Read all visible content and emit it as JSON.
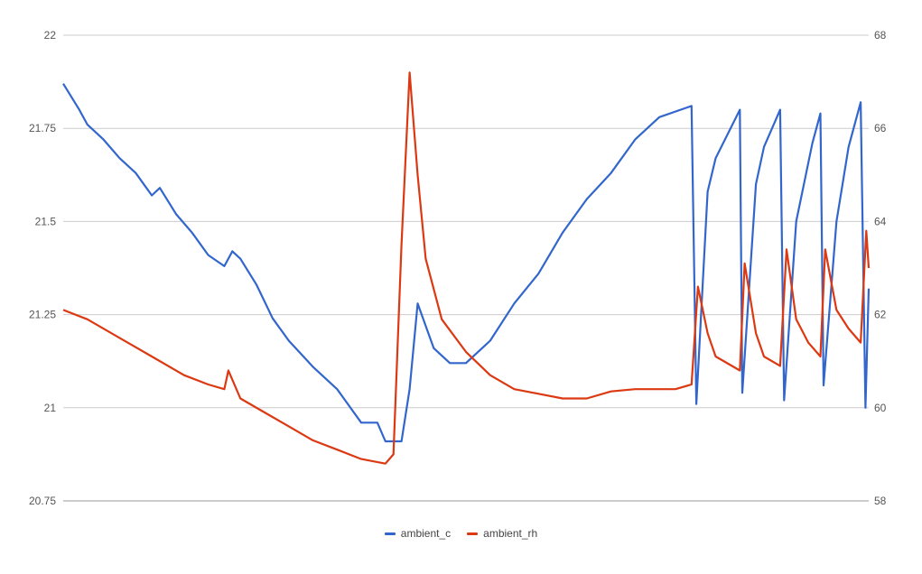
{
  "chart_data": {
    "type": "line",
    "y_left": {
      "ticks": [
        20.75,
        21,
        21.25,
        21.5,
        21.75,
        22
      ],
      "tick_labels": [
        "20.75",
        "21",
        "21.25",
        "21.5",
        "21.75",
        "22"
      ],
      "range": [
        20.75,
        22
      ]
    },
    "y_right": {
      "ticks": [
        58,
        60,
        62,
        64,
        66,
        68
      ],
      "tick_labels": [
        "58",
        "60",
        "62",
        "64",
        "66",
        "68"
      ],
      "range": [
        58,
        68
      ]
    },
    "x_range": [
      0,
      100
    ],
    "grid": true,
    "legend_position": "bottom",
    "series": [
      {
        "name": "ambient_c",
        "axis": "left",
        "color": "#3366cc",
        "points": [
          [
            0,
            21.87
          ],
          [
            2,
            21.8
          ],
          [
            3,
            21.76
          ],
          [
            5,
            21.72
          ],
          [
            7,
            21.67
          ],
          [
            9,
            21.63
          ],
          [
            11,
            21.57
          ],
          [
            12,
            21.59
          ],
          [
            14,
            21.52
          ],
          [
            16,
            21.47
          ],
          [
            18,
            21.41
          ],
          [
            20,
            21.38
          ],
          [
            21,
            21.42
          ],
          [
            22,
            21.4
          ],
          [
            24,
            21.33
          ],
          [
            26,
            21.24
          ],
          [
            28,
            21.18
          ],
          [
            31,
            21.11
          ],
          [
            34,
            21.05
          ],
          [
            37,
            20.96
          ],
          [
            39,
            20.96
          ],
          [
            40,
            20.91
          ],
          [
            42,
            20.91
          ],
          [
            43,
            21.05
          ],
          [
            44,
            21.28
          ],
          [
            46,
            21.16
          ],
          [
            48,
            21.12
          ],
          [
            50,
            21.12
          ],
          [
            53,
            21.18
          ],
          [
            56,
            21.28
          ],
          [
            59,
            21.36
          ],
          [
            62,
            21.47
          ],
          [
            65,
            21.56
          ],
          [
            68,
            21.63
          ],
          [
            71,
            21.72
          ],
          [
            74,
            21.78
          ],
          [
            78,
            21.81
          ],
          [
            78.6,
            21.01
          ],
          [
            80,
            21.58
          ],
          [
            81,
            21.67
          ],
          [
            84,
            21.8
          ],
          [
            84.3,
            21.04
          ],
          [
            86,
            21.6
          ],
          [
            87,
            21.7
          ],
          [
            89,
            21.8
          ],
          [
            89.5,
            21.02
          ],
          [
            91,
            21.5
          ],
          [
            93,
            21.71
          ],
          [
            94,
            21.79
          ],
          [
            94.4,
            21.06
          ],
          [
            96,
            21.5
          ],
          [
            97.5,
            21.7
          ],
          [
            99,
            21.82
          ],
          [
            99.6,
            21.0
          ],
          [
            100,
            21.32
          ]
        ]
      },
      {
        "name": "ambient_rh",
        "axis": "right",
        "color": "#dc3912",
        "points": [
          [
            0,
            62.1
          ],
          [
            3,
            61.9
          ],
          [
            7,
            61.5
          ],
          [
            11,
            61.1
          ],
          [
            15,
            60.7
          ],
          [
            18,
            60.5
          ],
          [
            20,
            60.4
          ],
          [
            20.5,
            60.8
          ],
          [
            22,
            60.2
          ],
          [
            25,
            59.9
          ],
          [
            28,
            59.6
          ],
          [
            31,
            59.3
          ],
          [
            34,
            59.1
          ],
          [
            37,
            58.9
          ],
          [
            40,
            58.8
          ],
          [
            41,
            59.0
          ],
          [
            42,
            63.5
          ],
          [
            43,
            67.2
          ],
          [
            44,
            65.0
          ],
          [
            45,
            63.2
          ],
          [
            47,
            61.9
          ],
          [
            50,
            61.2
          ],
          [
            53,
            60.7
          ],
          [
            56,
            60.4
          ],
          [
            59,
            60.3
          ],
          [
            62,
            60.2
          ],
          [
            65,
            60.2
          ],
          [
            68,
            60.35
          ],
          [
            71,
            60.4
          ],
          [
            74,
            60.4
          ],
          [
            76,
            60.4
          ],
          [
            78,
            60.5
          ],
          [
            78.8,
            62.6
          ],
          [
            80,
            61.6
          ],
          [
            81,
            61.1
          ],
          [
            84,
            60.8
          ],
          [
            84.6,
            63.1
          ],
          [
            86,
            61.6
          ],
          [
            87,
            61.1
          ],
          [
            89,
            60.9
          ],
          [
            89.8,
            63.4
          ],
          [
            91,
            61.9
          ],
          [
            92.5,
            61.4
          ],
          [
            94,
            61.1
          ],
          [
            94.6,
            63.4
          ],
          [
            96,
            62.1
          ],
          [
            97.5,
            61.7
          ],
          [
            99,
            61.4
          ],
          [
            99.7,
            63.8
          ],
          [
            100,
            63.0
          ]
        ]
      }
    ]
  }
}
